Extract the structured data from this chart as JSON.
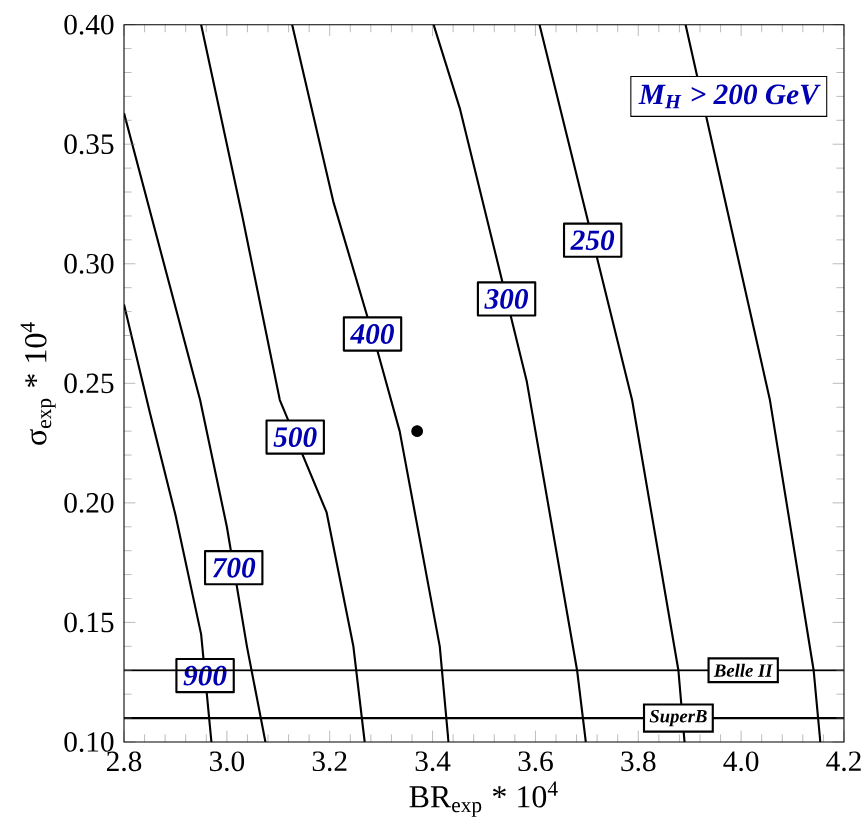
{
  "chart_data": {
    "type": "line",
    "xlabel": "BR$_{exp}$ * 10$^{4}$",
    "ylabel": "σ$_{exp}$ * 10$^{4}$",
    "xlim": [
      2.8,
      4.2
    ],
    "ylim": [
      0.1,
      0.4
    ],
    "xticks": [
      2.8,
      {
        "value": 3,
        "label": "3.0"
      },
      3.2,
      3.4,
      3.6,
      3.8,
      {
        "value": 4,
        "label": "4.0"
      },
      4.2
    ],
    "yticks": [
      {
        "value": 0.1,
        "label": "0.10"
      },
      0.15,
      {
        "value": 0.2,
        "label": "0.20"
      },
      0.25,
      {
        "value": 0.3,
        "label": "0.30"
      },
      0.35,
      {
        "value": 0.4,
        "label": "0.40"
      }
    ],
    "marker": "none",
    "series": [
      {
        "name": "900",
        "color": "#000000",
        "x": [
          2.8,
          2.85,
          2.9,
          2.95,
          2.97
        ],
        "values": [
          0.283,
          0.238,
          0.195,
          0.145,
          0.1
        ]
      },
      {
        "name": "700",
        "color": "#000000",
        "x": [
          2.8,
          2.948,
          3.0,
          3.039,
          3.075
        ],
        "values": [
          0.363,
          0.243,
          0.19,
          0.14,
          0.1
        ]
      },
      {
        "name": "500",
        "color": "#000000",
        "x": [
          2.95,
          3.03,
          3.103,
          3.194,
          3.246,
          3.268
        ],
        "values": [
          0.4,
          0.32,
          0.243,
          0.196,
          0.14,
          0.1
        ]
      },
      {
        "name": "400",
        "color": "#000000",
        "x": [
          3.127,
          3.207,
          3.291,
          3.336,
          3.414,
          3.431
        ],
        "values": [
          0.4,
          0.326,
          0.265,
          0.23,
          0.14,
          0.1
        ]
      },
      {
        "name": "300",
        "color": "#000000",
        "x": [
          3.402,
          3.453,
          3.583,
          3.681,
          3.698
        ],
        "values": [
          0.4,
          0.365,
          0.251,
          0.13,
          0.1
        ]
      },
      {
        "name": "250",
        "color": "#000000",
        "x": [
          3.608,
          3.788,
          3.878,
          3.89
        ],
        "values": [
          0.4,
          0.243,
          0.13,
          0.1
        ]
      },
      {
        "color": "#000000",
        "x": [
          3.892,
          4.056,
          4.141,
          4.154
        ],
        "values": [
          0.4,
          0.243,
          0.13,
          0.1
        ]
      },
      {
        "type": "scatter",
        "marker": "circle",
        "color": "#000000",
        "x": [
          3.37
        ],
        "values": [
          0.23
        ]
      }
    ],
    "ref_lines": [
      {
        "axis": "y",
        "value": 0.13,
        "label": "Belle II",
        "color": "#000000"
      },
      {
        "axis": "y",
        "value": 0.11,
        "label": "SuperB",
        "color": "#000000"
      }
    ],
    "annotations": [
      "M$_{H}$ > 200 GeV"
    ]
  }
}
